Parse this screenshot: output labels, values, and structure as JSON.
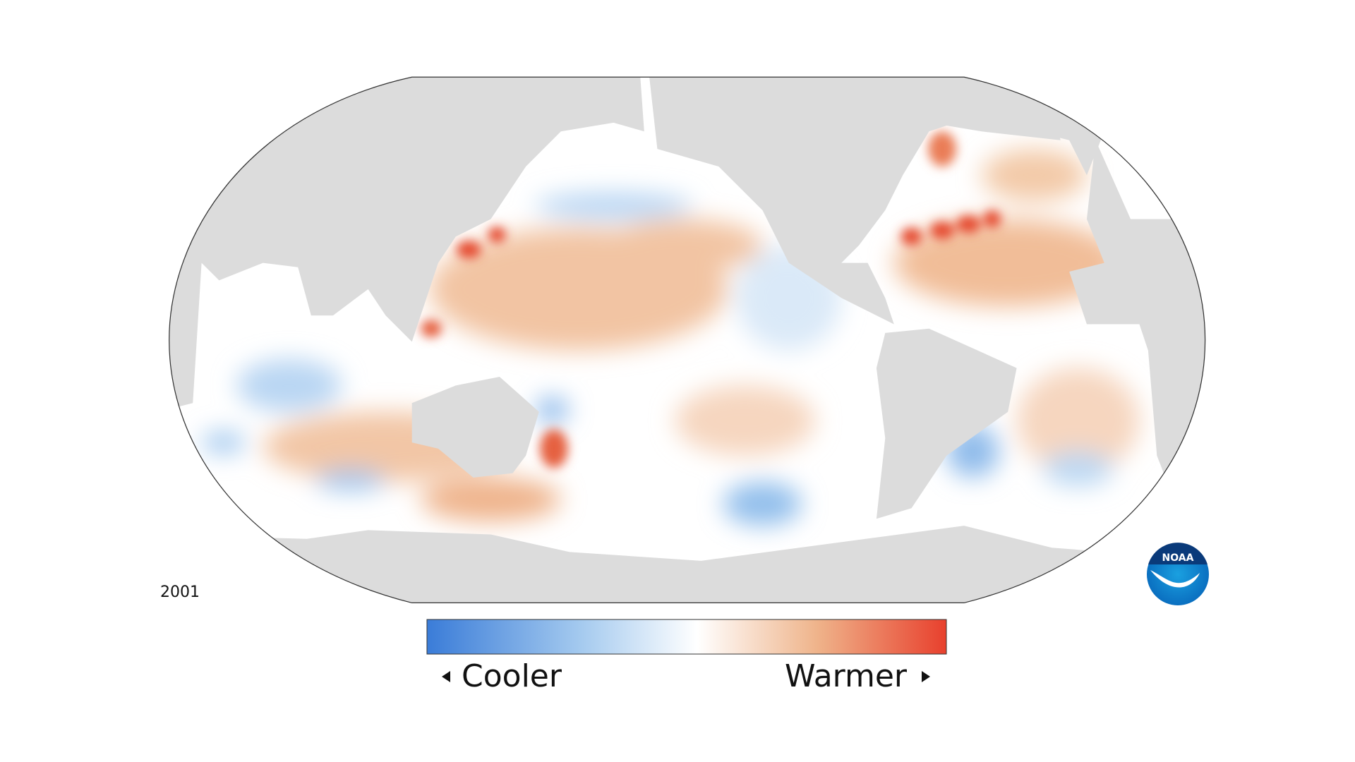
{
  "year": "2001",
  "legend": {
    "low": "Cooler",
    "high": "Warmer"
  },
  "logo": "NOAA"
}
